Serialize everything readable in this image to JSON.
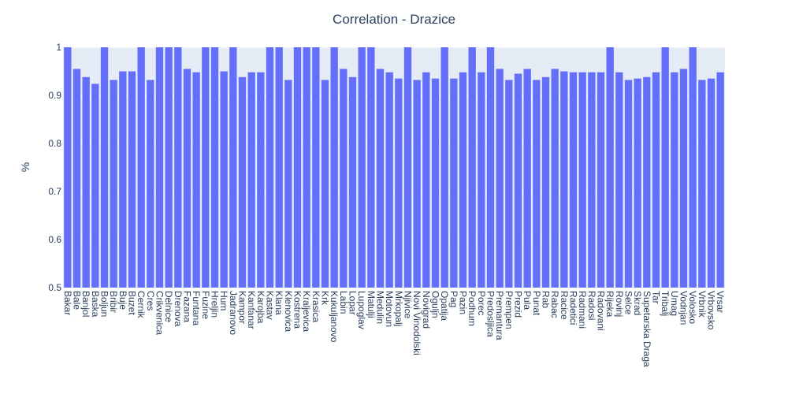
{
  "chart_data": {
    "type": "bar",
    "title": "Correlation - Drazice",
    "xlabel": "",
    "ylabel": "%",
    "ylim": [
      0.5,
      1.0
    ],
    "yticks": [
      "0.5",
      "0.6",
      "0.7",
      "0.8",
      "0.9",
      "1"
    ],
    "ytick_values": [
      0.5,
      0.6,
      0.7,
      0.8,
      0.9,
      1.0
    ],
    "plot_bgcolor": "#e5ecf6",
    "bar_color": "#636efa",
    "grid": true,
    "categories": [
      "Bakar",
      "Bale",
      "Banjol",
      "Baska",
      "Boljun",
      "Bribir",
      "Buje",
      "Buzet",
      "Cernik",
      "Cres",
      "Crikvenica",
      "Delnice",
      "Drenova",
      "Fazana",
      "Funtana",
      "Fuzine",
      "Hreljin",
      "Hum",
      "Jadranovo",
      "Kampor",
      "Kanfanar",
      "Karojba",
      "Kastav",
      "Klana",
      "Klenovica",
      "Kostrena",
      "Kraljevica",
      "Krasica",
      "Krk",
      "Kukuljanovo",
      "Labin",
      "Lopar",
      "Lupoglav",
      "Matulji",
      "Medulin",
      "Motovun",
      "Mrkopalj",
      "Njivice",
      "Novi Vinodolski",
      "Novigrad",
      "Oguljn",
      "Opatija",
      "Pag",
      "Pazin",
      "Podhum",
      "Porec",
      "Predosljica",
      "Premantura",
      "Prempen",
      "Prezid",
      "Pula",
      "Punat",
      "Rab",
      "Rabac",
      "Racice",
      "Radetici",
      "Radmani",
      "Radosi",
      "Radovani",
      "Rijeka",
      "Rovinj",
      "Selce",
      "Skrad",
      "Supetarska Draga",
      "Tar",
      "Tribalj",
      "Umag",
      "Vodnjan",
      "Volosko",
      "Vrbnik",
      "Vrbovsko",
      "Vrsar"
    ],
    "values": [
      1.0,
      0.955,
      0.938,
      0.924,
      1.0,
      0.932,
      0.95,
      0.95,
      1.0,
      0.932,
      1.0,
      1.0,
      1.0,
      0.955,
      0.948,
      1.0,
      1.0,
      0.95,
      1.0,
      0.938,
      0.948,
      0.948,
      1.0,
      1.0,
      0.932,
      1.0,
      1.0,
      1.0,
      0.932,
      1.0,
      0.955,
      0.938,
      1.0,
      1.0,
      0.955,
      0.948,
      0.935,
      1.0,
      0.932,
      0.948,
      0.935,
      1.0,
      0.935,
      0.948,
      1.0,
      0.948,
      1.0,
      0.955,
      0.932,
      0.945,
      0.955,
      0.932,
      0.938,
      0.955,
      0.95,
      0.948,
      0.948,
      0.948,
      0.948,
      1.0,
      0.948,
      0.932,
      0.935,
      0.938,
      0.948,
      1.0,
      0.948,
      0.955,
      1.0,
      0.932,
      0.935,
      0.948
    ]
  }
}
